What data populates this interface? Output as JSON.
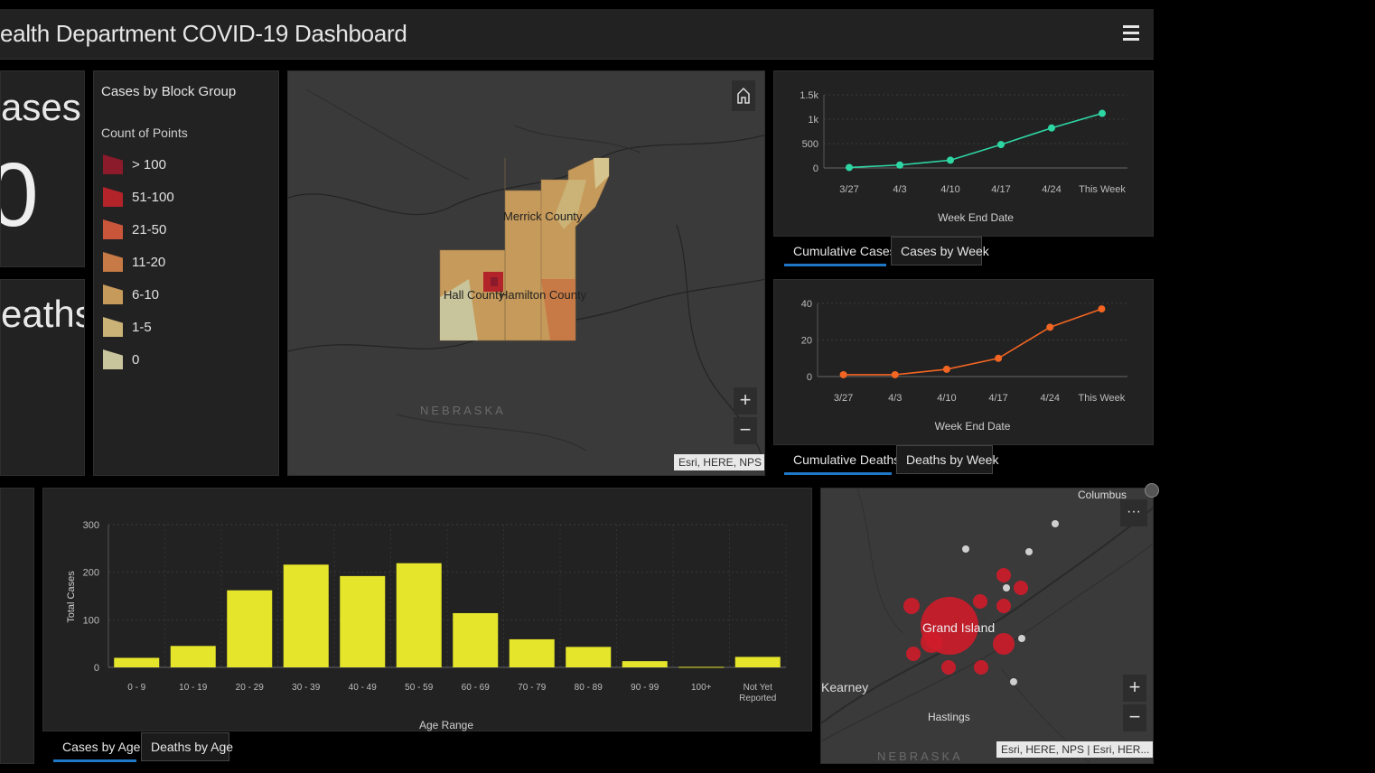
{
  "header": {
    "title": "ealth Department COVID-19 Dashboard"
  },
  "indicators": {
    "cases_label": "ases",
    "cases_value": "0",
    "deaths_label": "eaths"
  },
  "legend": {
    "title": "Cases by Block Group",
    "subtitle": "Count of Points",
    "items": [
      {
        "label": "> 100",
        "color": "#8b1a2b"
      },
      {
        "label": "51-100",
        "color": "#b3232a"
      },
      {
        "label": "21-50",
        "color": "#c9553a"
      },
      {
        "label": "11-20",
        "color": "#c77a45"
      },
      {
        "label": "6-10",
        "color": "#c69a5a"
      },
      {
        "label": "1-5",
        "color": "#cbb276"
      },
      {
        "label": "0",
        "color": "#c8c49b"
      }
    ]
  },
  "map_main": {
    "labels": {
      "merrick": "Merrick County",
      "hall": "Hall County",
      "hamilton": "Hamilton County",
      "state": "NEBRASKA"
    },
    "attribution": "Esri, HERE, NPS",
    "home_icon": "home-icon",
    "zoom_in": "+",
    "zoom_out": "−"
  },
  "chart_cases": {
    "type": "line",
    "x": [
      "3/27",
      "4/3",
      "4/10",
      "4/17",
      "4/24",
      "This Week"
    ],
    "values": [
      10,
      60,
      160,
      480,
      820,
      1120
    ],
    "yticks": [
      "0",
      "500",
      "1k",
      "1.5k"
    ],
    "ylim": [
      0,
      1500
    ],
    "xlabel": "Week End Date",
    "color": "#2ed6a4",
    "tabs": [
      "Cumulative Cases",
      "Cases by Week"
    ]
  },
  "chart_deaths": {
    "type": "line",
    "x": [
      "3/27",
      "4/3",
      "4/10",
      "4/17",
      "4/24",
      "This Week"
    ],
    "values": [
      1,
      1,
      4,
      10,
      27,
      37
    ],
    "yticks": [
      "0",
      "20",
      "40"
    ],
    "ylim": [
      0,
      40
    ],
    "xlabel": "Week End Date",
    "color": "#f26522",
    "tabs": [
      "Cumulative Deaths",
      "Deaths by Week"
    ]
  },
  "chart_age": {
    "type": "bar",
    "categories": [
      "0 - 9",
      "10 - 19",
      "20 - 29",
      "30 - 39",
      "40 - 49",
      "50 - 59",
      "60 - 69",
      "70 - 79",
      "80 - 89",
      "90 - 99",
      "100+",
      "Not Yet Reported"
    ],
    "values": [
      20,
      45,
      162,
      216,
      192,
      219,
      114,
      59,
      43,
      13,
      1,
      22
    ],
    "yticks": [
      "0",
      "100",
      "200",
      "300"
    ],
    "ylim": [
      0,
      300
    ],
    "xlabel": "Age Range",
    "ylabel": "Total Cases",
    "color": "#e5e52b",
    "tabs": [
      "Cases by Age",
      "Deaths by Age"
    ]
  },
  "map_small": {
    "labels": {
      "columbus": "Columbus",
      "grand_island": "Grand Island",
      "kearney": "Kearney",
      "hastings": "Hastings",
      "state": "NEBRASKA"
    },
    "attribution": "Esri, HERE, NPS | Esri, HER...",
    "more": "···",
    "zoom_in": "+",
    "zoom_out": "−"
  }
}
